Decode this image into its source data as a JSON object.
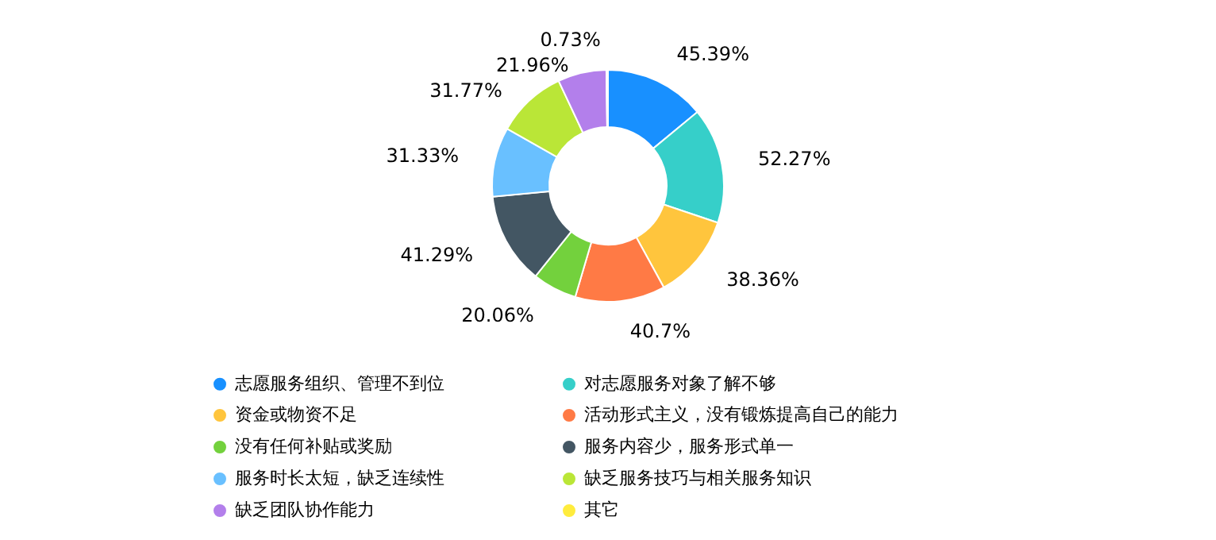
{
  "chart_data": {
    "type": "donut",
    "categories": [
      "志愿服务组织、管理不到位",
      "对志愿服务对象了解不够",
      "资金或物资不足",
      "活动形式主义，没有锻炼提高自己的能力",
      "没有任何补贴或奖励",
      "服务内容少，服务形式单一",
      "服务时长太短，缺乏连续性",
      "缺乏服务技巧与相关服务知识",
      "缺乏团队协作能力",
      "其它"
    ],
    "values": [
      45.39,
      52.27,
      38.36,
      40.7,
      20.06,
      41.29,
      31.33,
      31.77,
      21.96,
      0.73
    ],
    "value_labels": [
      "45.39%",
      "52.27%",
      "38.36%",
      "40.7%",
      "20.06%",
      "41.29%",
      "31.33%",
      "31.77%",
      "21.96%",
      "0.73%"
    ],
    "colors": [
      "#1890ff",
      "#36cfc9",
      "#ffc53d",
      "#ff7a45",
      "#73d13d",
      "#435663",
      "#69c0ff",
      "#bae637",
      "#b37feb",
      "#ffec3d"
    ],
    "legend": "bottom"
  }
}
